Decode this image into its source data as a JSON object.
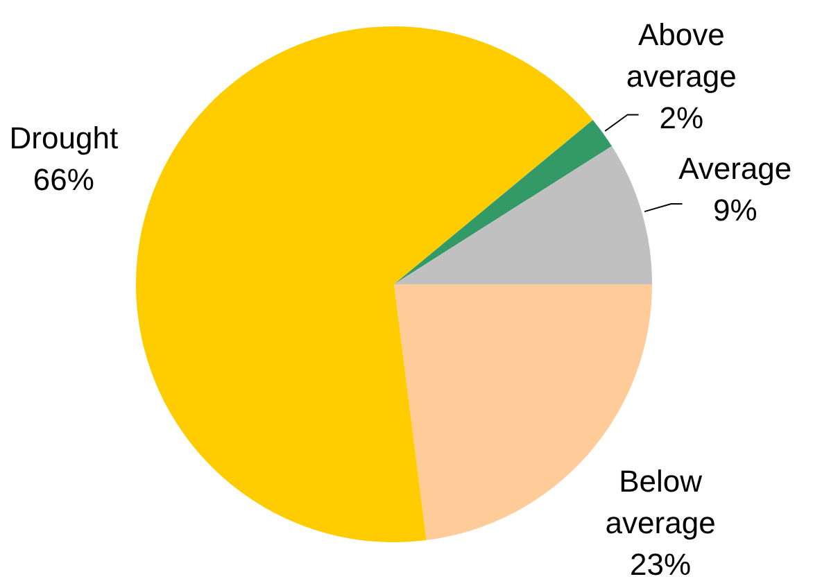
{
  "chart_data": {
    "type": "pie",
    "categories": [
      "Below average",
      "Drought",
      "Above average",
      "Average"
    ],
    "values": [
      23,
      66,
      2,
      9
    ],
    "value_labels": [
      "23%",
      "66%",
      "2%",
      "9%"
    ],
    "colors": [
      "#ffcc99",
      "#ffcc00",
      "#339966",
      "#c0c0c0"
    ]
  }
}
